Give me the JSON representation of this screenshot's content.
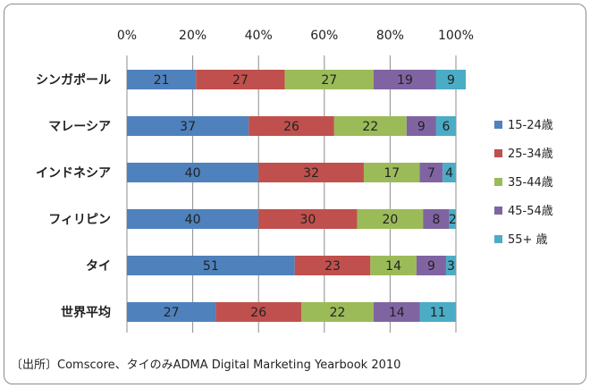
{
  "chart_data": {
    "type": "bar",
    "orientation": "horizontal",
    "stacked": "percent",
    "categories": [
      "シンガポール",
      "マレーシア",
      "インドネシア",
      "フィリピン",
      "タイ",
      "世界平均"
    ],
    "series": [
      {
        "name": "15-24歳",
        "color": "#4f81bd",
        "values": [
          21,
          37,
          40,
          40,
          51,
          27
        ]
      },
      {
        "name": "25-34歳",
        "color": "#c0504d",
        "values": [
          27,
          26,
          32,
          30,
          23,
          26
        ]
      },
      {
        "name": "35-44歳",
        "color": "#9bbb59",
        "values": [
          27,
          22,
          17,
          20,
          14,
          22
        ]
      },
      {
        "name": "45-54歳",
        "color": "#8064a2",
        "values": [
          19,
          9,
          7,
          8,
          9,
          14
        ]
      },
      {
        "name": "55+ 歳",
        "color": "#4bacc6",
        "values": [
          9,
          6,
          4,
          2,
          3,
          11
        ]
      }
    ],
    "x_ticks": [
      "0%",
      "20%",
      "40%",
      "60%",
      "80%",
      "100%"
    ],
    "xlim": [
      0,
      100
    ],
    "grid": true,
    "legend": "right"
  },
  "source": "〔出所〕Comscore、タイのみADMA Digital Marketing Yearbook 2010"
}
